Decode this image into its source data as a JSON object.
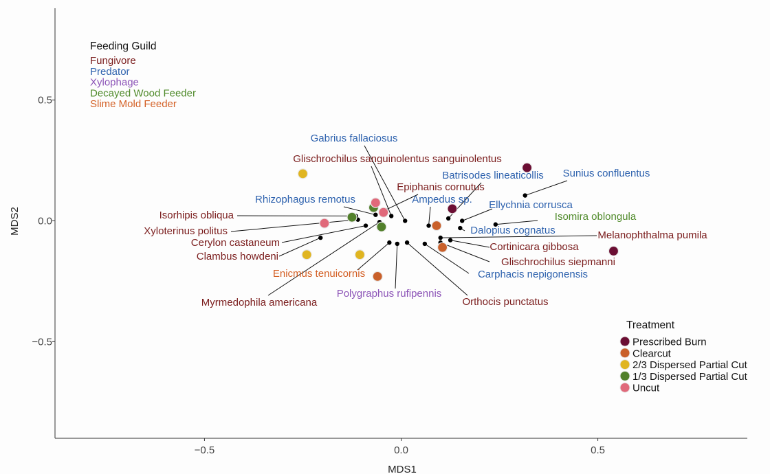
{
  "chart_data": {
    "type": "scatter",
    "xlabel": "MDS1",
    "ylabel": "MDS2",
    "xlim": [
      -0.88,
      0.88
    ],
    "ylim": [
      -0.9,
      0.88
    ],
    "x_ticks": [
      {
        "value": -0.5,
        "label": "−0.5"
      },
      {
        "value": 0.0,
        "label": "0.0"
      },
      {
        "value": 0.5,
        "label": "0.5"
      }
    ],
    "y_ticks": [
      {
        "value": 0.5,
        "label": "0.5"
      },
      {
        "value": 0.0,
        "label": "0.0"
      },
      {
        "value": -0.5,
        "label": "−0.5"
      }
    ],
    "grid": false,
    "guild_legend": {
      "title": "Feeding Guild",
      "entries": [
        {
          "label": "Fungivore",
          "color": "#7a1c1c"
        },
        {
          "label": "Predator",
          "color": "#2e62ae"
        },
        {
          "label": "Xylophage",
          "color": "#8c54b7"
        },
        {
          "label": "Decayed Wood Feeder",
          "color": "#4f8a2a"
        },
        {
          "label": "Slime Mold Feeder",
          "color": "#d35f24"
        }
      ]
    },
    "treatment_legend": {
      "title": "Treatment",
      "entries": [
        {
          "label": "Prescribed Burn",
          "color": "#6b0e33"
        },
        {
          "label": "Clearcut",
          "color": "#c9602a"
        },
        {
          "label": "2/3 Dispersed Partial Cut",
          "color": "#e0b521"
        },
        {
          "label": "1/3 Dispersed Partial Cut",
          "color": "#52802b"
        },
        {
          "label": "Uncut",
          "color": "#e0697a"
        }
      ]
    },
    "site_points": [
      {
        "treatment": "Prescribed Burn",
        "x": 0.32,
        "y": 0.22
      },
      {
        "treatment": "Prescribed Burn",
        "x": 0.13,
        "y": 0.05
      },
      {
        "treatment": "Prescribed Burn",
        "x": 0.54,
        "y": -0.125
      },
      {
        "treatment": "Clearcut",
        "x": 0.09,
        "y": -0.02
      },
      {
        "treatment": "Clearcut",
        "x": 0.105,
        "y": -0.11
      },
      {
        "treatment": "Clearcut",
        "x": -0.06,
        "y": -0.23
      },
      {
        "treatment": "2/3 Dispersed Partial Cut",
        "x": -0.25,
        "y": 0.195
      },
      {
        "treatment": "2/3 Dispersed Partial Cut",
        "x": -0.24,
        "y": -0.14
      },
      {
        "treatment": "2/3 Dispersed Partial Cut",
        "x": -0.105,
        "y": -0.14
      },
      {
        "treatment": "1/3 Dispersed Partial Cut",
        "x": -0.07,
        "y": 0.055
      },
      {
        "treatment": "1/3 Dispersed Partial Cut",
        "x": -0.125,
        "y": 0.015
      },
      {
        "treatment": "1/3 Dispersed Partial Cut",
        "x": -0.05,
        "y": -0.025
      },
      {
        "treatment": "Uncut",
        "x": -0.065,
        "y": 0.075
      },
      {
        "treatment": "Uncut",
        "x": -0.045,
        "y": 0.035
      },
      {
        "treatment": "Uncut",
        "x": -0.195,
        "y": -0.01
      }
    ],
    "species": [
      {
        "name": "Gabrius fallaciosus",
        "guild": "Predator",
        "x": 0.01,
        "y": 0.0
      },
      {
        "name": "Glischrochilus sanguinolentus sanguinolentus",
        "guild": "Fungivore",
        "x": -0.025,
        "y": 0.02
      },
      {
        "name": "Epiphanis cornutus",
        "guild": "Fungivore",
        "x": -0.04,
        "y": 0.045
      },
      {
        "name": "Rhizophagus remotus",
        "guild": "Predator",
        "x": -0.065,
        "y": 0.025
      },
      {
        "name": "Isorhipis obliqua",
        "guild": "Fungivore",
        "x": -0.115,
        "y": 0.02
      },
      {
        "name": "Xyloterinus politus",
        "guild": "Fungivore",
        "x": -0.11,
        "y": 0.005
      },
      {
        "name": "Cerylon castaneum",
        "guild": "Fungivore",
        "x": -0.09,
        "y": -0.02
      },
      {
        "name": "Clambus howdeni",
        "guild": "Fungivore",
        "x": -0.205,
        "y": -0.07
      },
      {
        "name": "Myrmedophila americana",
        "guild": "Fungivore",
        "x": -0.055,
        "y": -0.005
      },
      {
        "name": "Enicmus tenuicornis",
        "guild": "Slime Mold Feeder",
        "x": -0.03,
        "y": -0.09
      },
      {
        "name": "Polygraphus rufipennis",
        "guild": "Xylophage",
        "x": -0.01,
        "y": -0.095
      },
      {
        "name": "Orthocis punctatus",
        "guild": "Fungivore",
        "x": 0.015,
        "y": -0.09
      },
      {
        "name": "Ampedus sp.",
        "guild": "Predator",
        "x": 0.07,
        "y": -0.02
      },
      {
        "name": "Batrisodes lineaticollis",
        "guild": "Predator",
        "x": 0.12,
        "y": 0.01
      },
      {
        "name": "Sunius confluentus",
        "guild": "Predator",
        "x": 0.315,
        "y": 0.105
      },
      {
        "name": "Ellychnia corrusca",
        "guild": "Predator",
        "x": 0.155,
        "y": 0.0
      },
      {
        "name": "Isomira oblongula",
        "guild": "Decayed Wood Feeder",
        "x": 0.24,
        "y": -0.015
      },
      {
        "name": "Dalopius cognatus",
        "guild": "Predator",
        "x": 0.15,
        "y": -0.03
      },
      {
        "name": "Melanophthalma pumila",
        "guild": "Fungivore",
        "x": 0.1,
        "y": -0.07
      },
      {
        "name": "Cortinicara gibbosa",
        "guild": "Fungivore",
        "x": 0.125,
        "y": -0.08
      },
      {
        "name": "Glischrochilus siepmanni",
        "guild": "Fungivore",
        "x": 0.1,
        "y": -0.09
      },
      {
        "name": "Carphacis nepigonensis",
        "guild": "Predator",
        "x": 0.06,
        "y": -0.095
      }
    ]
  }
}
